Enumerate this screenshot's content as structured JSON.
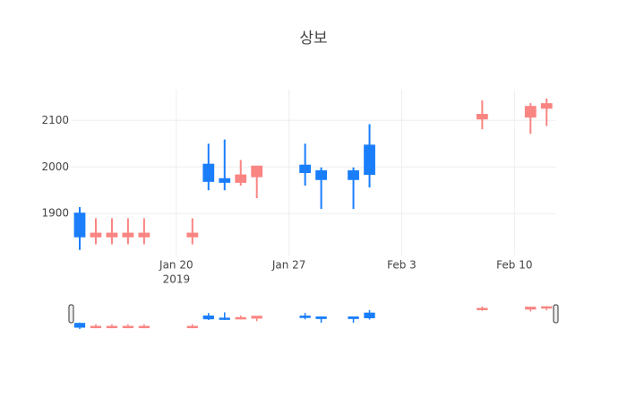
{
  "chart_data": {
    "type": "candlestick",
    "title": "상보",
    "x": [
      "2019-01-14",
      "2019-01-15",
      "2019-01-16",
      "2019-01-17",
      "2019-01-18",
      "2019-01-21",
      "2019-01-22",
      "2019-01-23",
      "2019-01-24",
      "2019-01-25",
      "2019-01-28",
      "2019-01-29",
      "2019-01-31",
      "2019-02-01",
      "2019-02-08",
      "2019-02-11",
      "2019-02-12"
    ],
    "open": [
      1851,
      1857,
      1857,
      1857,
      1857,
      1857,
      1970,
      1968,
      1982,
      2001,
      1989,
      1974,
      1974,
      1985,
      2112,
      2129,
      2135
    ],
    "high": [
      1914,
      1890,
      1890,
      1890,
      1890,
      1890,
      2050,
      2059,
      2015,
      2001,
      2050,
      1999,
      1999,
      2092,
      2143,
      2137,
      2147
    ],
    "low": [
      1822,
      1834,
      1834,
      1834,
      1834,
      1834,
      1950,
      1950,
      1960,
      1933,
      1960,
      1910,
      1910,
      1956,
      2081,
      2071,
      2088
    ],
    "close": [
      1900,
      1851,
      1851,
      1851,
      1851,
      1851,
      2005,
      1974,
      1968,
      1980,
      2003,
      1991,
      1991,
      2046,
      2104,
      2108,
      2127
    ],
    "increasing_color": "#1a7efb",
    "decreasing_color": "#f98582",
    "xlim": [
      "2019-01-13T12:00:00",
      "2019-02-12T13:00:00"
    ],
    "xticks": [
      {
        "value": "2019-01-20",
        "label": "Jan 20"
      },
      {
        "value": "2019-01-27",
        "label": "Jan 27"
      },
      {
        "value": "2019-02-03",
        "label": "Feb 3"
      },
      {
        "value": "2019-02-10",
        "label": "Feb 10"
      }
    ],
    "x_year_label": "2019",
    "ylim": [
      1810,
      2166
    ],
    "yticks": [
      1900,
      2000,
      2100
    ],
    "grid": true,
    "rangeslider": true
  }
}
